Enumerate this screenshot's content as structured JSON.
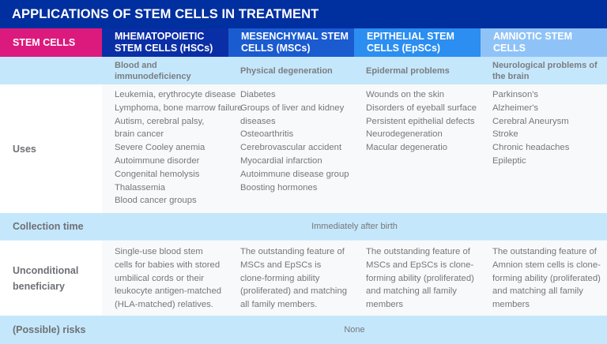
{
  "title": "APPLICATIONS OF STEM CELLS IN TREATMENT",
  "header": {
    "row_label": "STEM CELLS",
    "columns": [
      "MHEMATOPOIETIC STEM CELLS (HSCs)",
      "MESENCHYMAL STEM CELLS (MSCs)",
      "EPITHELIAL STEM CELLS (EpSCs)",
      "AMNIOTIC STEM CELLS"
    ]
  },
  "colors": {
    "title_bg": "#002fa0",
    "stem_cells_header": "#dc1a7d",
    "hsc_header": "#0a2ea6",
    "msc_header": "#1a5bd0",
    "epsc_header": "#2b8ef0",
    "amniotic_header": "#8fc3f7",
    "light_band": "#c5e7fb"
  },
  "categories": [
    "Blood and immunodeficiency",
    "Physical degeneration",
    "Epidermal problems",
    "Neurological problems of the brain"
  ],
  "rows": {
    "uses": {
      "label": "Uses",
      "cells": [
        [
          "Leukemia, erythrocyte disease",
          "Lymphoma, bone marrow failure",
          "Autism, cerebral palsy,",
          "brain cancer",
          "Severe Cooley anemia",
          "Autoimmune disorder",
          "Congenital hemolysis",
          "Thalassemia",
          "Blood cancer groups"
        ],
        [
          "Diabetes",
          "Groups of liver and kidney",
          "diseases",
          "Osteoarthritis",
          "Cerebrovascular accident",
          "Myocardial infarction",
          "Autoimmune disease group",
          "Boosting hormones"
        ],
        [
          "Wounds on the skin",
          "Disorders of eyeball surface",
          "Persistent epithelial defects",
          "Neurodegeneration",
          "Macular degeneratio"
        ],
        [
          "Parkinson's",
          "Alzheimer's",
          "Cerebral Aneurysm",
          "Stroke",
          "Chronic headaches",
          "Epileptic"
        ]
      ]
    },
    "collection_time": {
      "label": "Collection time",
      "value": "Immediately after birth"
    },
    "unconditional_beneficiary": {
      "label": "Unconditional beneficiary",
      "cells": [
        "Single-use blood stem cells for babies with stored umbilical cords or their leukocyte antigen-matched (HLA-matched) relatives.",
        "The outstanding feature of MSCs and EpSCs is clone-forming ability (proliferated) and matching all family members.",
        "The outstanding feature of MSCs and EpSCs is clone-forming ability (proliferated) and matching all family members",
        "The outstanding feature of Amnion stem cells is clone-forming ability (proliferated) and matching all family members"
      ]
    },
    "risks": {
      "label": "(Possible) risks",
      "value": "None"
    }
  }
}
